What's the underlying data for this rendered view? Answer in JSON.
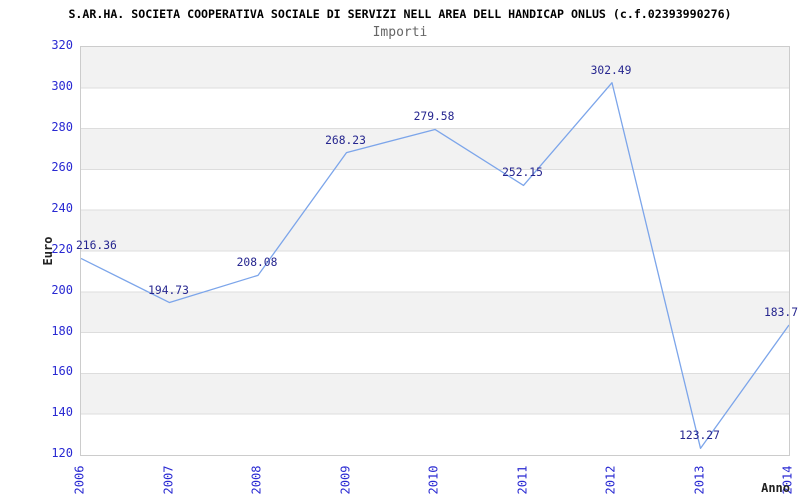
{
  "header": {
    "title": "S.AR.HA. SOCIETA COOPERATIVA SOCIALE DI SERVIZI NELL AREA DELL HANDICAP ONLUS (c.f.02393990276)",
    "subtitle": "Importi"
  },
  "chart_data": {
    "type": "line",
    "title": "Importi",
    "categories": [
      "2006",
      "2007",
      "2008",
      "2009",
      "2010",
      "2011",
      "2012",
      "2013",
      "2014"
    ],
    "series": [
      {
        "name": "Importi",
        "values": [
          216.36,
          194.73,
          208.08,
          268.23,
          279.58,
          252.15,
          302.49,
          123.27,
          183.7
        ]
      }
    ],
    "point_labels": [
      "216.36",
      "194.73",
      "208.08",
      "268.23",
      "279.58",
      "252.15",
      "302.49",
      "123.27",
      "183.7"
    ],
    "xlabel": "Anno",
    "ylabel": "Euro",
    "ylim": [
      120,
      320
    ],
    "yticks": [
      120,
      140,
      160,
      180,
      200,
      220,
      240,
      260,
      280,
      300,
      320
    ],
    "grid": "horizontal-bands-alternating",
    "legend": "none",
    "colors": {
      "line": "#7ca5ea",
      "tick_label": "#2929d2",
      "point_label": "#26268f",
      "band_fill": "#f2f2f2",
      "grid_line": "#dddddd",
      "plot_border": "#cccccc",
      "title": "#000000",
      "subtitle": "#666666",
      "axis_title": "#222222"
    }
  }
}
